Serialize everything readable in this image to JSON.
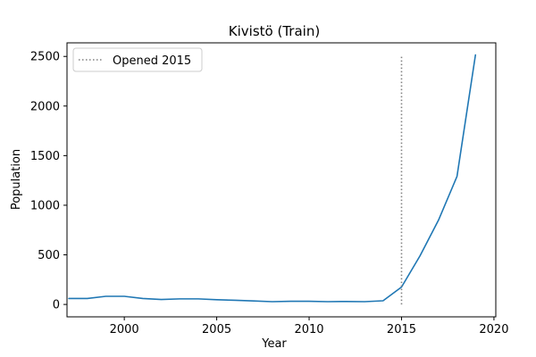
{
  "chart_data": {
    "type": "line",
    "title": "Kivistö (Train)",
    "xlabel": "Year",
    "ylabel": "Population",
    "xlim": [
      1996.9,
      2020.1
    ],
    "ylim": [
      -125,
      2637
    ],
    "xticks": [
      2000,
      2005,
      2010,
      2015,
      2020
    ],
    "yticks": [
      0,
      500,
      1000,
      1500,
      2000,
      2500
    ],
    "grid": false,
    "legend_position": "upper-left",
    "series": [
      {
        "color": "#1f77b4",
        "x": [
          1997,
          1998,
          1999,
          2000,
          2001,
          2002,
          2003,
          2004,
          2005,
          2006,
          2007,
          2008,
          2009,
          2010,
          2011,
          2012,
          2013,
          2014,
          2015,
          2016,
          2017,
          2018,
          2019
        ],
        "y": [
          60,
          60,
          82,
          82,
          60,
          50,
          56,
          56,
          48,
          42,
          35,
          28,
          32,
          32,
          28,
          30,
          28,
          37,
          175,
          490,
          850,
          1290,
          2515
        ]
      }
    ],
    "annotations": [
      {
        "type": "vline",
        "x": 2015,
        "y_range": [
          0,
          2500
        ],
        "style": "dotted",
        "color": "#808080",
        "label": "Opened 2015"
      }
    ]
  }
}
